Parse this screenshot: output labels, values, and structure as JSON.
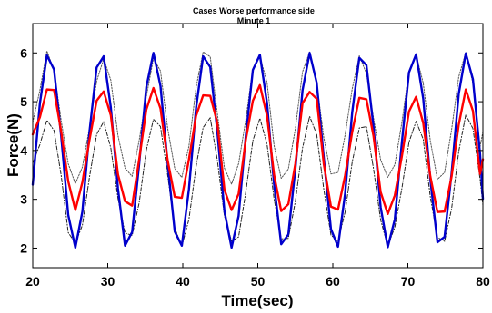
{
  "chart_data": {
    "type": "line",
    "title": "Cases Worse performance side",
    "subtitle": "Minute 1",
    "xlabel": "Time(sec)",
    "ylabel": "Force(N)",
    "xlim": [
      20,
      80
    ],
    "ylim": [
      1.6,
      6.6
    ],
    "xticks": [
      20,
      30,
      40,
      50,
      60,
      70,
      80
    ],
    "yticks": [
      2,
      3,
      4,
      5,
      6
    ],
    "grid": false,
    "legend": "none",
    "series": [
      {
        "color": "#0000cc",
        "style": "solid-thick",
        "x": [
          20,
          20.95,
          21.89,
          22.84,
          23.79,
          24.73,
          25.68,
          26.62,
          27.57,
          28.52,
          29.46,
          30.41,
          31.36,
          32.3,
          33.25,
          34.19,
          35.14,
          36.09,
          37.03,
          37.98,
          38.93,
          39.87,
          40.82,
          41.77,
          42.71,
          43.66,
          44.6,
          45.55,
          46.5,
          47.44,
          48.39,
          49.34,
          50.28,
          51.23,
          52.17,
          53.12,
          54.07,
          55.01,
          55.96,
          56.91,
          57.85,
          58.8,
          59.75,
          60.69,
          61.64,
          62.58,
          63.53,
          64.48,
          65.42,
          66.37,
          67.32,
          68.26,
          69.21,
          70.15,
          71.1,
          72.05,
          72.99,
          73.94,
          74.89,
          75.83,
          76.78,
          77.72,
          78.67,
          79.62,
          80
        ],
        "y": [
          3.3,
          4.96,
          5.95,
          5.66,
          4.3,
          2.68,
          2.01,
          2.75,
          4.39,
          5.7,
          5.93,
          4.88,
          3.22,
          2.05,
          2.33,
          3.73,
          5.3,
          6,
          5.32,
          3.74,
          2.34,
          2.05,
          3.21,
          4.87,
          5.93,
          5.71,
          4.4,
          2.76,
          2.01,
          2.66,
          4.28,
          5.65,
          5.96,
          4.97,
          3.31,
          2.08,
          2.28,
          3.63,
          5.23,
          6,
          5.39,
          3.84,
          2.39,
          2.03,
          3.12,
          4.78,
          5.9,
          5.75,
          4.49,
          2.84,
          2.02,
          2.59,
          4.18,
          5.6,
          5.97,
          5.06,
          3.41,
          2.12,
          2.23,
          3.54,
          5.16,
          5.99,
          5.46,
          3.93,
          3.01
        ]
      },
      {
        "color": "#ff0000",
        "style": "solid-thick",
        "x": [
          20,
          20.95,
          21.89,
          22.84,
          23.79,
          24.73,
          25.68,
          26.62,
          27.57,
          28.52,
          29.46,
          30.41,
          31.36,
          32.3,
          33.25,
          34.19,
          35.14,
          36.09,
          37.03,
          37.98,
          38.93,
          39.87,
          40.82,
          41.77,
          42.71,
          43.66,
          44.6,
          45.55,
          46.5,
          47.44,
          48.39,
          49.34,
          50.28,
          51.23,
          52.17,
          53.12,
          54.07,
          55.01,
          55.96,
          56.91,
          57.85,
          58.8,
          59.75,
          60.69,
          61.64,
          62.58,
          63.53,
          64.48,
          65.42,
          66.37,
          67.32,
          68.26,
          69.21,
          70.15,
          71.1,
          72.05,
          72.99,
          73.94,
          74.89,
          75.83,
          76.78,
          77.72,
          78.67,
          79.62,
          80
        ],
        "y": [
          4.33,
          4.68,
          5.25,
          5.24,
          4.39,
          3.37,
          2.78,
          3.35,
          4.22,
          5.02,
          5.21,
          4.72,
          3.51,
          2.96,
          2.87,
          3.82,
          4.84,
          5.28,
          4.86,
          3.8,
          3.05,
          3.03,
          3.82,
          4.71,
          5.13,
          5.12,
          4.57,
          3.2,
          2.78,
          3.11,
          4.21,
          5.02,
          5.34,
          4.71,
          3.5,
          2.76,
          2.9,
          3.73,
          4.97,
          5.2,
          5.06,
          3.72,
          2.85,
          2.79,
          3.49,
          4.38,
          5.08,
          5.05,
          4.3,
          3.15,
          2.7,
          3.08,
          3.89,
          4.8,
          5.1,
          4.56,
          3.47,
          2.74,
          2.75,
          3.47,
          4.53,
          5.25,
          4.81,
          3.52,
          3.82
        ]
      },
      {
        "color": "#555555",
        "style": "dotted",
        "x": [
          20,
          20.95,
          21.89,
          22.84,
          23.79,
          24.73,
          25.68,
          26.62,
          27.57,
          28.52,
          29.46,
          30.41,
          31.36,
          32.3,
          33.25,
          34.19,
          35.14,
          36.09,
          37.03,
          37.98,
          38.93,
          39.87,
          40.82,
          41.77,
          42.71,
          43.66,
          44.6,
          45.55,
          46.5,
          47.44,
          48.39,
          49.34,
          50.28,
          51.23,
          52.17,
          53.12,
          54.07,
          55.01,
          55.96,
          56.91,
          57.85,
          58.8,
          59.75,
          60.69,
          61.64,
          62.58,
          63.53,
          64.48,
          65.42,
          66.37,
          67.32,
          68.26,
          69.21,
          70.15,
          71.1,
          72.05,
          72.99,
          73.94,
          74.89,
          75.83,
          76.78,
          77.72,
          78.67,
          79.62,
          80
        ],
        "y": [
          4.58,
          5.23,
          6.04,
          5.64,
          4.61,
          3.73,
          3.32,
          3.66,
          4.47,
          5.42,
          5.88,
          5.44,
          4.31,
          3.64,
          3.47,
          4.21,
          5.1,
          5.89,
          5.63,
          4.46,
          3.63,
          3.45,
          4.09,
          5.29,
          6.02,
          5.92,
          4.77,
          3.64,
          3.31,
          3.73,
          4.62,
          5.68,
          5.92,
          5.4,
          4.1,
          3.43,
          3.62,
          4.45,
          5.61,
          6.02,
          5.38,
          4.26,
          3.52,
          3.55,
          4.32,
          5.26,
          5.94,
          5.58,
          4.67,
          3.81,
          3.45,
          3.71,
          4.58,
          5.63,
          5.96,
          5.38,
          4.2,
          3.41,
          3.55,
          4.43,
          5.51,
          6.01,
          5.38,
          4.08,
          4.38
        ]
      },
      {
        "color": "#222222",
        "style": "dash-dot",
        "x": [
          20,
          20.95,
          21.89,
          22.84,
          23.79,
          24.73,
          25.68,
          26.62,
          27.57,
          28.52,
          29.46,
          30.41,
          31.36,
          32.3,
          33.25,
          34.19,
          35.14,
          36.09,
          37.03,
          37.98,
          38.93,
          39.87,
          40.82,
          41.77,
          42.71,
          43.66,
          44.6,
          45.55,
          46.5,
          47.44,
          48.39,
          49.34,
          50.28,
          51.23,
          52.17,
          53.12,
          54.07,
          55.01,
          55.96,
          56.91,
          57.85,
          58.8,
          59.75,
          60.69,
          61.64,
          62.58,
          63.53,
          64.48,
          65.42,
          66.37,
          67.32,
          68.26,
          69.21,
          70.15,
          71.1,
          72.05,
          72.99,
          73.94,
          74.89,
          75.83,
          76.78,
          77.72,
          78.67,
          79.62,
          80
        ],
        "y": [
          3.74,
          4.12,
          4.62,
          4.41,
          3.49,
          2.32,
          2.1,
          2.47,
          3.46,
          4.33,
          4.59,
          4.05,
          3.02,
          2.31,
          2.26,
          2.93,
          4.01,
          4.64,
          4.49,
          3.5,
          2.41,
          2.04,
          2.59,
          3.67,
          4.47,
          4.67,
          3.81,
          2.66,
          2.14,
          2.23,
          3.14,
          4.2,
          4.66,
          4.13,
          3.01,
          2.19,
          2.2,
          2.96,
          4.05,
          4.7,
          4.33,
          3.2,
          2.27,
          2.14,
          2.74,
          3.76,
          4.46,
          4.49,
          3.63,
          2.58,
          2.04,
          2.43,
          3.23,
          4.17,
          4.6,
          4.23,
          3.05,
          2.22,
          2.14,
          2.81,
          3.98,
          4.73,
          4.45,
          3.42,
          2.88
        ]
      }
    ]
  }
}
